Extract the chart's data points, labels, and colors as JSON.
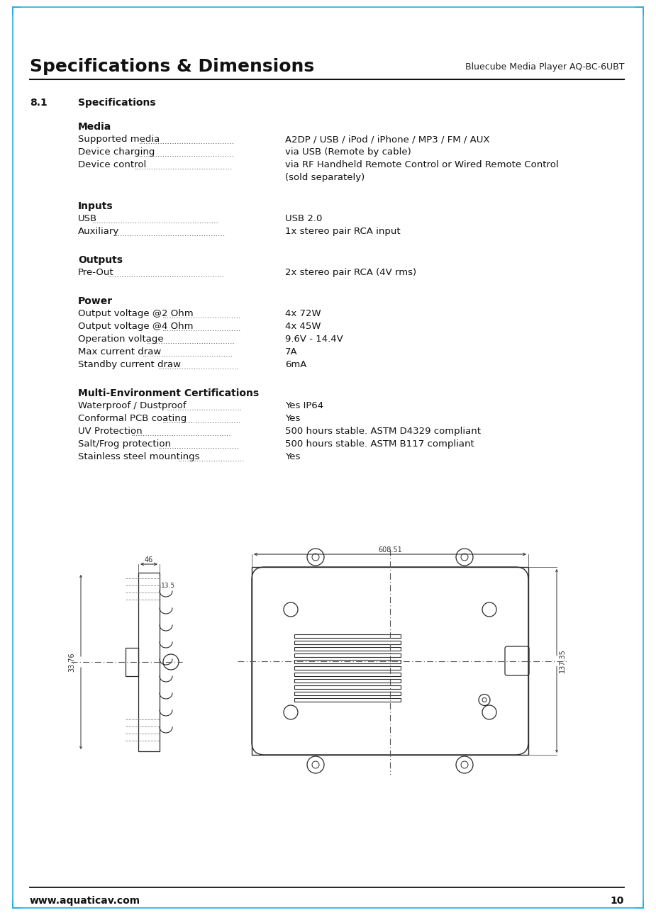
{
  "page_title": "Specifications & Dimensions",
  "page_subtitle": "Bluecube Media Player AQ-BC-6UBT",
  "section_number": "8.1",
  "section_title": "Specifications",
  "border_color": "#29ABE2",
  "footer_url": "www.aquaticav.com",
  "footer_page": "10",
  "bg_color": "#ffffff",
  "categories": [
    {
      "name": "Media",
      "items": [
        {
          "label": "Supported media",
          "value": "A2DP / USB / iPod / iPhone / MP3 / FM / AUX",
          "wrap": false
        },
        {
          "label": "Device charging",
          "value": "via USB (Remote by cable)",
          "wrap": false
        },
        {
          "label": "Device control",
          "value": "via RF Handheld Remote Control or Wired Remote Control\n(sold separately)",
          "wrap": true
        }
      ]
    },
    {
      "name": "Inputs",
      "items": [
        {
          "label": "USB",
          "value": "USB 2.0",
          "wrap": false
        },
        {
          "label": "Auxiliary",
          "value": "1x stereo pair RCA input",
          "wrap": false
        }
      ]
    },
    {
      "name": "Outputs",
      "items": [
        {
          "label": "Pre-Out",
          "value": "2x stereo pair RCA (4V rms)",
          "wrap": false
        }
      ]
    },
    {
      "name": "Power",
      "items": [
        {
          "label": "Output voltage @2 Ohm",
          "value": "4x 72W",
          "wrap": false
        },
        {
          "label": "Output voltage @4 Ohm",
          "value": "4x 45W",
          "wrap": false
        },
        {
          "label": "Operation voltage",
          "value": "9.6V - 14.4V",
          "wrap": false
        },
        {
          "label": "Max current draw",
          "value": "7A",
          "wrap": false
        },
        {
          "label": "Standby current draw",
          "value": "6mA",
          "wrap": false
        }
      ]
    },
    {
      "name": "Multi-Environment Certifications",
      "items": [
        {
          "label": "Waterproof / Dustproof",
          "value": "Yes IP64",
          "wrap": false
        },
        {
          "label": "Conformal PCB coating",
          "value": "Yes",
          "wrap": false
        },
        {
          "label": "UV Protection",
          "value": "500 hours stable. ASTM D4329 compliant",
          "wrap": false
        },
        {
          "label": "Salt/Frog protection",
          "value": "500 hours stable. ASTM B117 compliant",
          "wrap": false
        },
        {
          "label": "Stainless steel mountings",
          "value": "Yes",
          "wrap": false
        }
      ]
    }
  ],
  "dim_label_46": "46",
  "dim_label_135": "13.5",
  "dim_label_3376": "33.76",
  "dim_label_60851": "608.51",
  "dim_label_13735": "137.35"
}
